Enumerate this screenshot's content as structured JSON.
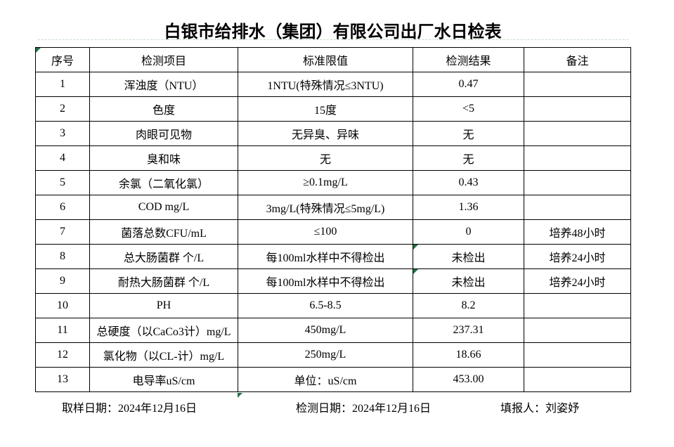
{
  "title": "白银市给排水（集团）有限公司出厂水日检表",
  "colors": {
    "background": "#ffffff",
    "border": "#000000",
    "text": "#000000",
    "error_indicator": "#217346"
  },
  "table": {
    "headers": [
      "序号",
      "检测项目",
      "标准限值",
      "检测结果",
      "备注"
    ],
    "rows": [
      {
        "no": "1",
        "item": "浑浊度（NTU）",
        "limit": "1NTU(特殊情况≤3NTU)",
        "result": "0.47",
        "note": ""
      },
      {
        "no": "2",
        "item": "色度",
        "limit": "15度",
        "result": "<5",
        "note": ""
      },
      {
        "no": "3",
        "item": "肉眼可见物",
        "limit": "无异臭、异味",
        "result": "无",
        "note": ""
      },
      {
        "no": "4",
        "item": "臭和味",
        "limit": "无",
        "result": "无",
        "note": ""
      },
      {
        "no": "5",
        "item": "余氯（二氧化氯）",
        "limit": "≥0.1mg/L",
        "result": "0.43",
        "note": ""
      },
      {
        "no": "6",
        "item": "COD        mg/L",
        "limit": "3mg/L(特殊情况≤5mg/L)",
        "result": "1.36",
        "note": ""
      },
      {
        "no": "7",
        "item": "菌落总数CFU/mL",
        "limit": "≤100",
        "result": "0",
        "note": "培养48小时"
      },
      {
        "no": "8",
        "item": "总大肠菌群 个/L",
        "limit": "每100ml水样中不得检出",
        "result": "未检出",
        "note": "培养24小时",
        "result_flag": true
      },
      {
        "no": "9",
        "item": "耐热大肠菌群 个/L",
        "limit": "每100ml水样中不得检出",
        "result": "未检出",
        "note": "培养24小时",
        "result_flag": true
      },
      {
        "no": "10",
        "item": "PH",
        "limit": "6.5-8.5",
        "result": "8.2",
        "note": ""
      },
      {
        "no": "11",
        "item": "总硬度（以CaCo3计）mg/L",
        "limit": "450mg/L",
        "result": "237.31",
        "note": ""
      },
      {
        "no": "12",
        "item": "氯化物（以CL-计）mg/L",
        "limit": "250mg/L",
        "result": "18.66",
        "note": ""
      },
      {
        "no": "13",
        "item": "电导率uS/cm",
        "limit": "单位：uS/cm",
        "result": "453.00",
        "note": ""
      }
    ]
  },
  "footer": {
    "sampling_date": "取样日期：2024年12月16日",
    "test_date": "检测日期：2024年12月16日",
    "reporter": "填报人：刘姿妤"
  }
}
